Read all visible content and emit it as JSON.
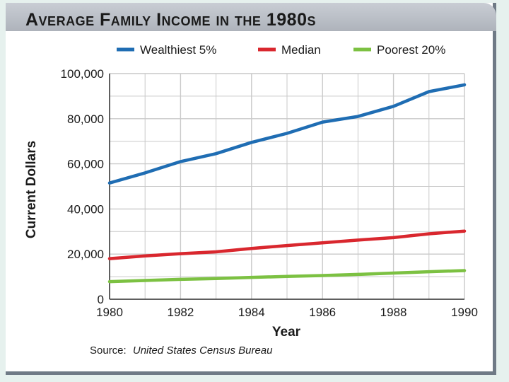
{
  "chart_data": {
    "type": "line",
    "title": "Average Family Income in the 1980s",
    "xlabel": "Year",
    "ylabel": "Current Dollars",
    "x": [
      1980,
      1981,
      1982,
      1983,
      1984,
      1985,
      1986,
      1987,
      1988,
      1989,
      1990
    ],
    "x_ticks": [
      "1980",
      "1982",
      "1984",
      "1986",
      "1988",
      "1990"
    ],
    "y_ticks": [
      "0",
      "20,000",
      "40,000",
      "60,000",
      "80,000",
      "100,000"
    ],
    "xlim": [
      1980,
      1990
    ],
    "ylim": [
      0,
      100000
    ],
    "grid": true,
    "legend_position": "top",
    "series": [
      {
        "name": "Wealthiest 5%",
        "color": "#1f6db3",
        "values": [
          51500,
          56000,
          61000,
          64500,
          69500,
          73500,
          78500,
          81000,
          85500,
          92000,
          95000
        ]
      },
      {
        "name": "Median",
        "color": "#d9272e",
        "values": [
          18000,
          19200,
          20200,
          21000,
          22500,
          23800,
          25000,
          26200,
          27300,
          29000,
          30200
        ]
      },
      {
        "name": "Poorest 20%",
        "color": "#7cc142",
        "values": [
          7800,
          8300,
          8800,
          9200,
          9700,
          10100,
          10500,
          11000,
          11600,
          12200,
          12700
        ]
      }
    ],
    "source_label": "Source:",
    "source_text": "United States Census Bureau"
  }
}
